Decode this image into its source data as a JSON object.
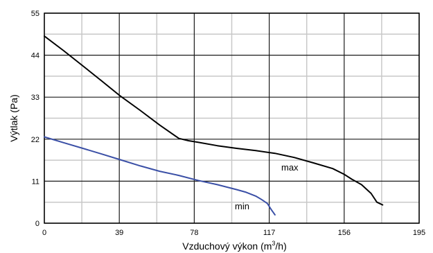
{
  "chart_data": {
    "type": "line",
    "xlabel": "Vzduchový výkon (m",
    "xlabel_sup": "3",
    "xlabel_end": "/h)",
    "ylabel": "Výtlak (Pa)",
    "xlim": [
      0,
      195
    ],
    "ylim": [
      0,
      55
    ],
    "x_ticks": [
      0,
      39,
      78,
      117,
      156,
      195
    ],
    "x_tick_labels": [
      "0",
      "39",
      "78",
      "117",
      "156",
      "195"
    ],
    "y_ticks": [
      0,
      11,
      22,
      33,
      44,
      55
    ],
    "y_tick_labels": [
      "0",
      "11",
      "22",
      "33",
      "44",
      "55"
    ],
    "x_minor_ticks": [
      19.5,
      58.5,
      97.5,
      136.5,
      175.5
    ],
    "y_minor_ticks": [
      5.5,
      16.5,
      27.5,
      38.5,
      49.5
    ],
    "grid": true,
    "series": [
      {
        "name": "max",
        "color": "#000000",
        "x": [
          0,
          10,
          20,
          30,
          39,
          50,
          60,
          70,
          75,
          80,
          90,
          100,
          110,
          120,
          130,
          140,
          150,
          156,
          160,
          165,
          170,
          173,
          176
        ],
        "y": [
          49,
          45.2,
          41.2,
          37.2,
          33.5,
          29.5,
          25.7,
          22.2,
          21.6,
          21.2,
          20.3,
          19.6,
          19.0,
          18.3,
          17.2,
          15.8,
          14.3,
          12.8,
          11.5,
          10.1,
          7.8,
          5.5,
          4.8
        ]
      },
      {
        "name": "min",
        "color": "#3a4fa6",
        "x": [
          0,
          10,
          20,
          30,
          39,
          50,
          60,
          70,
          80,
          90,
          100,
          105,
          110,
          113,
          116,
          118,
          120
        ],
        "y": [
          22.6,
          21.1,
          19.6,
          18.1,
          16.7,
          15.0,
          13.6,
          12.5,
          11.2,
          10.1,
          8.8,
          8.1,
          7.1,
          6.2,
          5.2,
          3.6,
          2.2
        ]
      }
    ]
  }
}
